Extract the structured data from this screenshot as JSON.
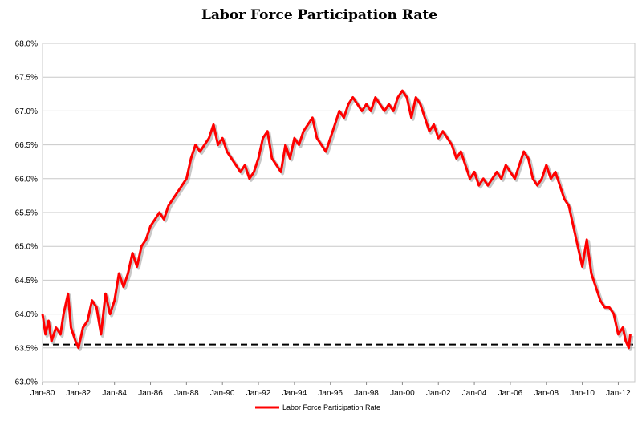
{
  "chart_data": {
    "type": "line",
    "title": "Labor Force Participation Rate",
    "xlabel": "",
    "ylabel": "",
    "ylim": [
      63.0,
      68.0
    ],
    "y_ticks": [
      "63.0%",
      "63.5%",
      "64.0%",
      "64.5%",
      "65.0%",
      "65.5%",
      "66.0%",
      "66.5%",
      "67.0%",
      "67.5%",
      "68.0%"
    ],
    "x_ticks": [
      "Jan-80",
      "Jan-82",
      "Jan-84",
      "Jan-86",
      "Jan-88",
      "Jan-90",
      "Jan-92",
      "Jan-94",
      "Jan-96",
      "Jan-98",
      "Jan-00",
      "Jan-02",
      "Jan-04",
      "Jan-06",
      "Jan-08",
      "Jan-10",
      "Jan-12"
    ],
    "grid": true,
    "legend_position": "bottom",
    "reference_line": {
      "value": 63.55,
      "style": "dashed"
    },
    "series": [
      {
        "name": "Labor Force Participation Rate",
        "color": "#ff0000",
        "points": [
          [
            "1980-01",
            64.0
          ],
          [
            "1980-03",
            63.7
          ],
          [
            "1980-05",
            63.9
          ],
          [
            "1980-07",
            63.6
          ],
          [
            "1980-10",
            63.8
          ],
          [
            "1981-01",
            63.7
          ],
          [
            "1981-03",
            64.0
          ],
          [
            "1981-06",
            64.3
          ],
          [
            "1981-08",
            63.8
          ],
          [
            "1981-11",
            63.6
          ],
          [
            "1982-01",
            63.5
          ],
          [
            "1982-04",
            63.8
          ],
          [
            "1982-07",
            63.9
          ],
          [
            "1982-10",
            64.2
          ],
          [
            "1983-01",
            64.1
          ],
          [
            "1983-04",
            63.7
          ],
          [
            "1983-07",
            64.3
          ],
          [
            "1983-10",
            64.0
          ],
          [
            "1984-01",
            64.2
          ],
          [
            "1984-04",
            64.6
          ],
          [
            "1984-07",
            64.4
          ],
          [
            "1984-10",
            64.6
          ],
          [
            "1985-01",
            64.9
          ],
          [
            "1985-04",
            64.7
          ],
          [
            "1985-07",
            65.0
          ],
          [
            "1985-10",
            65.1
          ],
          [
            "1986-01",
            65.3
          ],
          [
            "1986-04",
            65.4
          ],
          [
            "1986-07",
            65.5
          ],
          [
            "1986-10",
            65.4
          ],
          [
            "1987-01",
            65.6
          ],
          [
            "1987-04",
            65.7
          ],
          [
            "1987-07",
            65.8
          ],
          [
            "1987-10",
            65.9
          ],
          [
            "1988-01",
            66.0
          ],
          [
            "1988-04",
            66.3
          ],
          [
            "1988-07",
            66.5
          ],
          [
            "1988-10",
            66.4
          ],
          [
            "1989-01",
            66.5
          ],
          [
            "1989-04",
            66.6
          ],
          [
            "1989-07",
            66.8
          ],
          [
            "1989-10",
            66.5
          ],
          [
            "1990-01",
            66.6
          ],
          [
            "1990-04",
            66.4
          ],
          [
            "1990-07",
            66.3
          ],
          [
            "1990-10",
            66.2
          ],
          [
            "1991-01",
            66.1
          ],
          [
            "1991-04",
            66.2
          ],
          [
            "1991-07",
            66.0
          ],
          [
            "1991-10",
            66.1
          ],
          [
            "1992-01",
            66.3
          ],
          [
            "1992-04",
            66.6
          ],
          [
            "1992-07",
            66.7
          ],
          [
            "1992-10",
            66.3
          ],
          [
            "1993-01",
            66.2
          ],
          [
            "1993-04",
            66.1
          ],
          [
            "1993-07",
            66.5
          ],
          [
            "1993-10",
            66.3
          ],
          [
            "1994-01",
            66.6
          ],
          [
            "1994-04",
            66.5
          ],
          [
            "1994-07",
            66.7
          ],
          [
            "1994-10",
            66.8
          ],
          [
            "1995-01",
            66.9
          ],
          [
            "1995-04",
            66.6
          ],
          [
            "1995-07",
            66.5
          ],
          [
            "1995-10",
            66.4
          ],
          [
            "1996-01",
            66.6
          ],
          [
            "1996-04",
            66.8
          ],
          [
            "1996-07",
            67.0
          ],
          [
            "1996-10",
            66.9
          ],
          [
            "1997-01",
            67.1
          ],
          [
            "1997-04",
            67.2
          ],
          [
            "1997-07",
            67.1
          ],
          [
            "1997-10",
            67.0
          ],
          [
            "1998-01",
            67.1
          ],
          [
            "1998-04",
            67.0
          ],
          [
            "1998-07",
            67.2
          ],
          [
            "1998-10",
            67.1
          ],
          [
            "1999-01",
            67.0
          ],
          [
            "1999-04",
            67.1
          ],
          [
            "1999-07",
            67.0
          ],
          [
            "1999-10",
            67.2
          ],
          [
            "2000-01",
            67.3
          ],
          [
            "2000-04",
            67.2
          ],
          [
            "2000-07",
            66.9
          ],
          [
            "2000-10",
            67.2
          ],
          [
            "2001-01",
            67.1
          ],
          [
            "2001-04",
            66.9
          ],
          [
            "2001-07",
            66.7
          ],
          [
            "2001-10",
            66.8
          ],
          [
            "2002-01",
            66.6
          ],
          [
            "2002-04",
            66.7
          ],
          [
            "2002-07",
            66.6
          ],
          [
            "2002-10",
            66.5
          ],
          [
            "2003-01",
            66.3
          ],
          [
            "2003-04",
            66.4
          ],
          [
            "2003-07",
            66.2
          ],
          [
            "2003-10",
            66.0
          ],
          [
            "2004-01",
            66.1
          ],
          [
            "2004-04",
            65.9
          ],
          [
            "2004-07",
            66.0
          ],
          [
            "2004-10",
            65.9
          ],
          [
            "2005-01",
            66.0
          ],
          [
            "2005-04",
            66.1
          ],
          [
            "2005-07",
            66.0
          ],
          [
            "2005-10",
            66.2
          ],
          [
            "2006-01",
            66.1
          ],
          [
            "2006-04",
            66.0
          ],
          [
            "2006-07",
            66.2
          ],
          [
            "2006-10",
            66.4
          ],
          [
            "2007-01",
            66.3
          ],
          [
            "2007-04",
            66.0
          ],
          [
            "2007-07",
            65.9
          ],
          [
            "2007-10",
            66.0
          ],
          [
            "2008-01",
            66.2
          ],
          [
            "2008-04",
            66.0
          ],
          [
            "2008-07",
            66.1
          ],
          [
            "2008-10",
            65.9
          ],
          [
            "2009-01",
            65.7
          ],
          [
            "2009-04",
            65.6
          ],
          [
            "2009-07",
            65.3
          ],
          [
            "2009-10",
            65.0
          ],
          [
            "2010-01",
            64.7
          ],
          [
            "2010-04",
            65.1
          ],
          [
            "2010-07",
            64.6
          ],
          [
            "2010-10",
            64.4
          ],
          [
            "2011-01",
            64.2
          ],
          [
            "2011-04",
            64.1
          ],
          [
            "2011-07",
            64.1
          ],
          [
            "2011-10",
            64.0
          ],
          [
            "2012-01",
            63.7
          ],
          [
            "2012-04",
            63.8
          ],
          [
            "2012-06",
            63.6
          ],
          [
            "2012-08",
            63.5
          ],
          [
            "2012-09",
            63.7
          ]
        ]
      }
    ]
  }
}
